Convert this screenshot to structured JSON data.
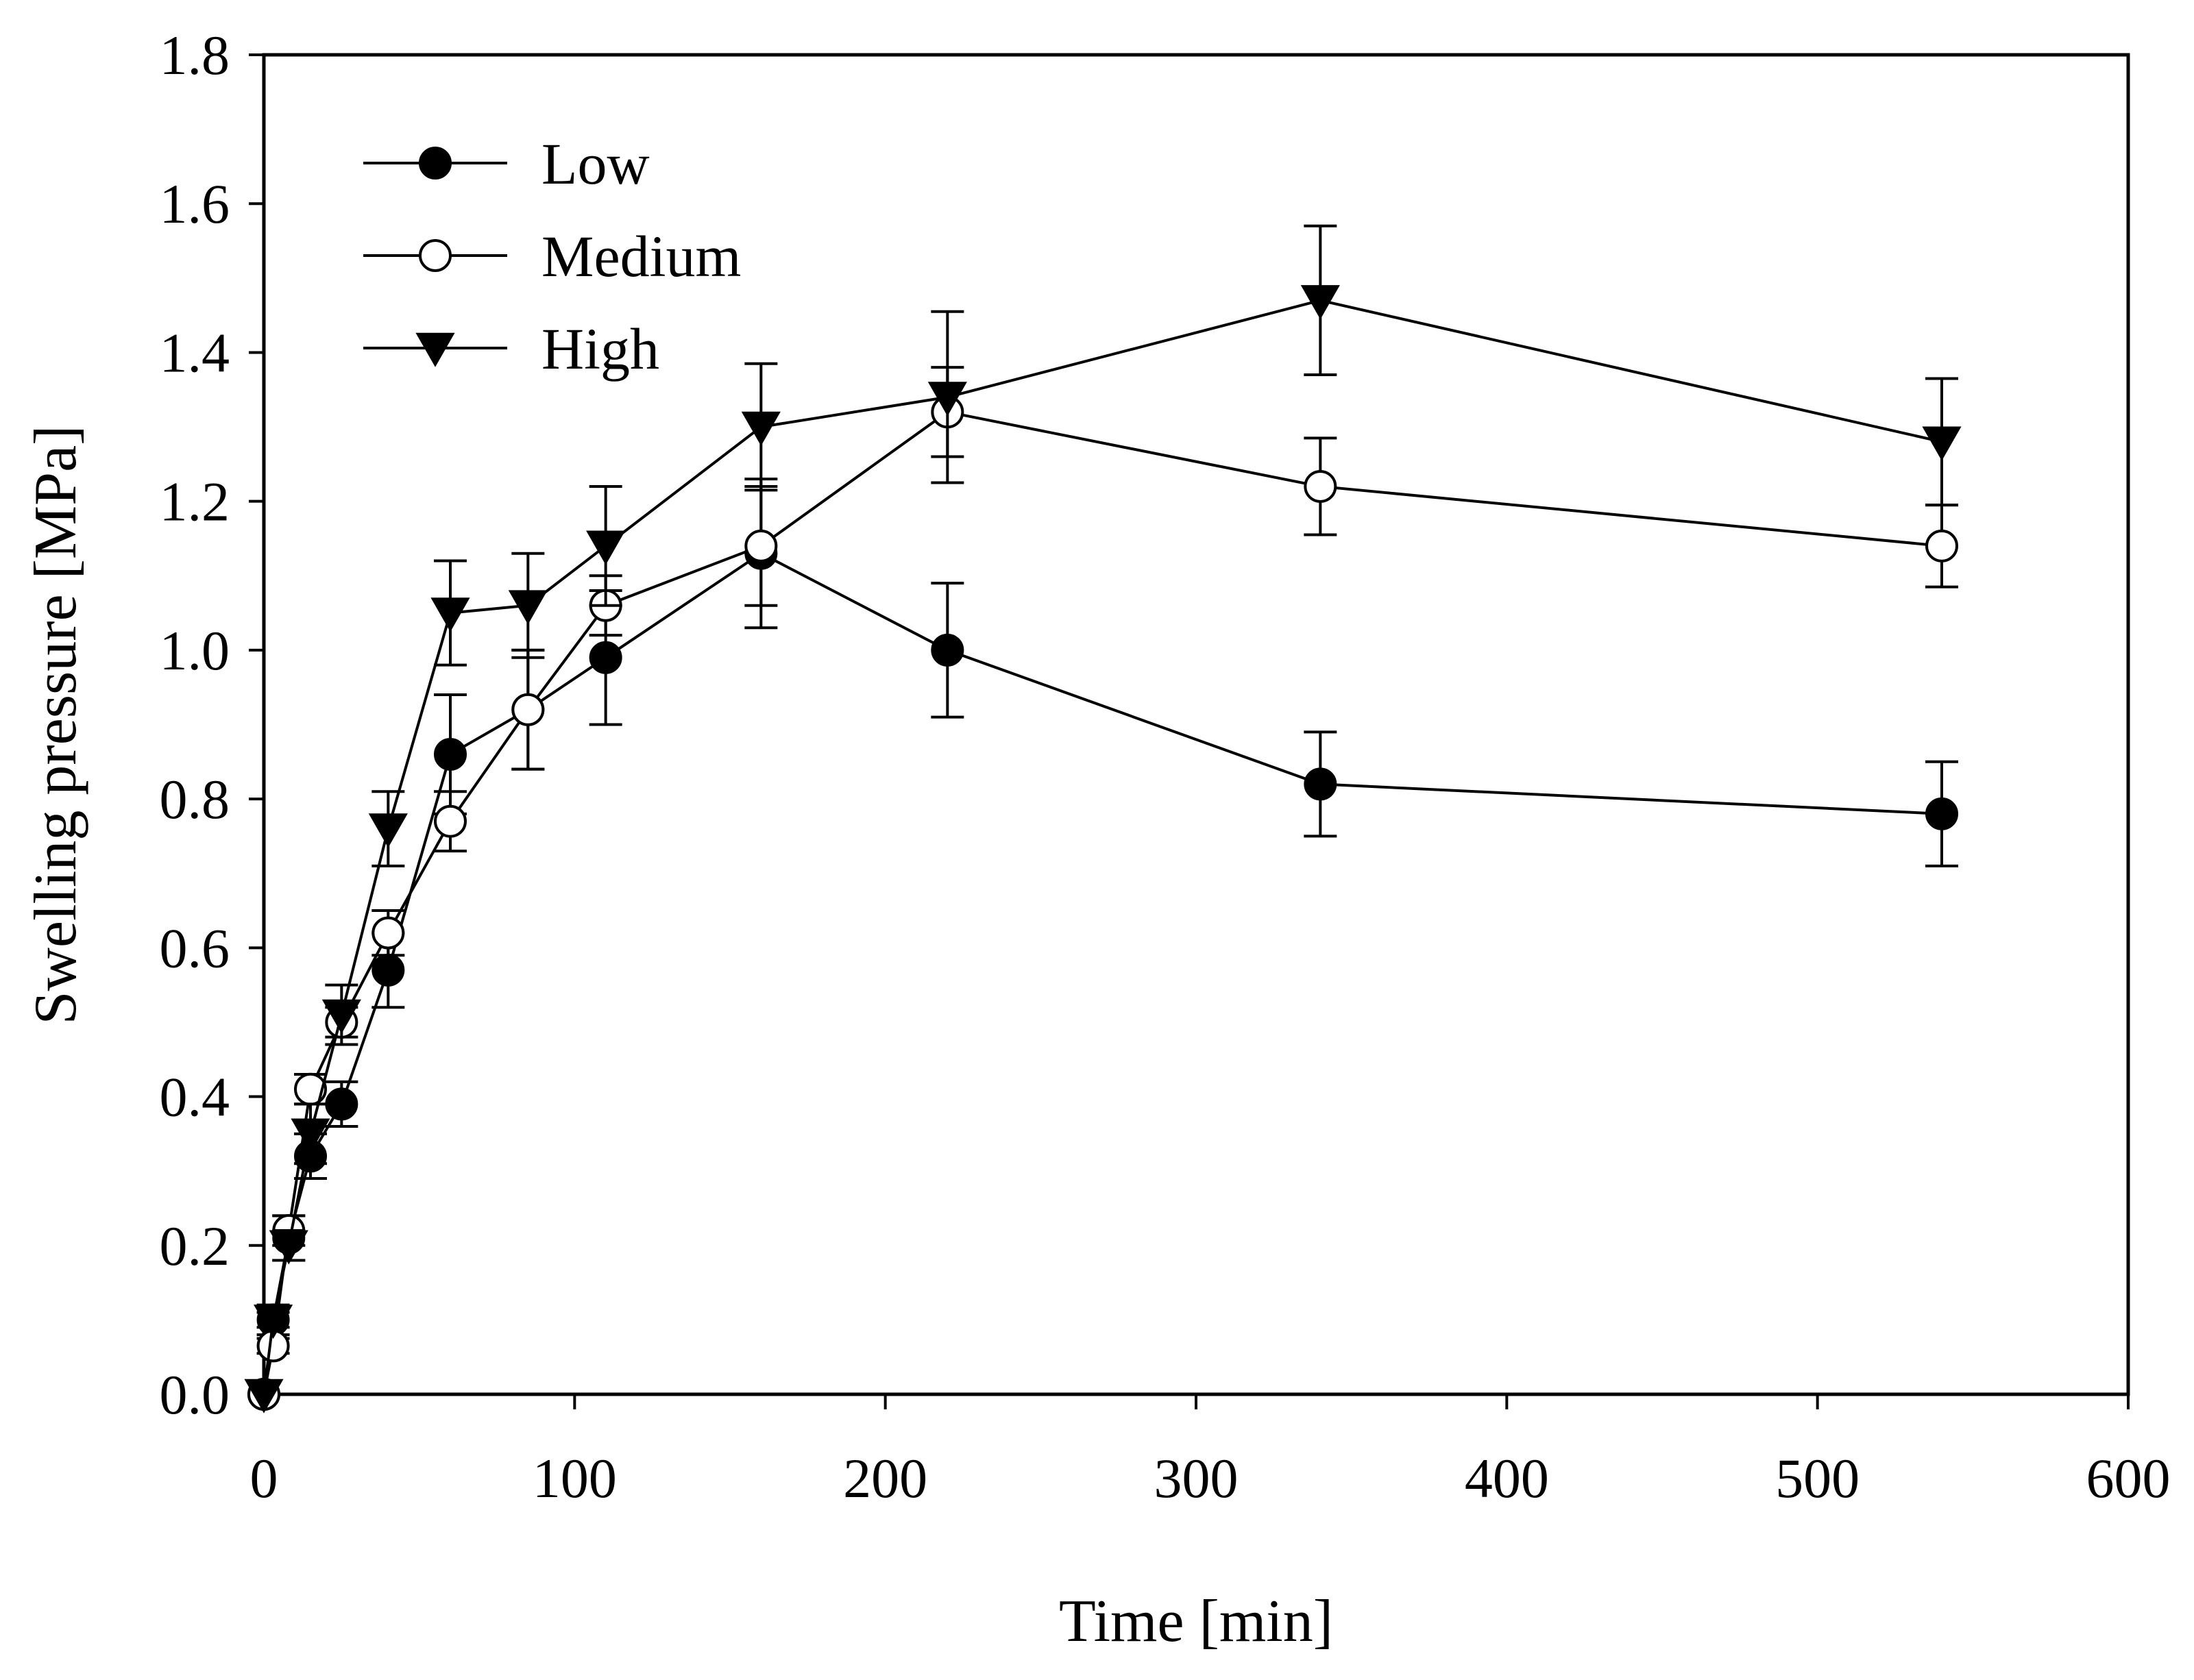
{
  "chart_data": {
    "type": "line",
    "title": "",
    "xlabel": "Time [min]",
    "ylabel": "Swelling pressure [MPa]",
    "xlim": [
      0,
      600
    ],
    "ylim": [
      0.0,
      1.8
    ],
    "x_ticks": [
      "0",
      "100",
      "200",
      "300",
      "400",
      "500",
      "600"
    ],
    "y_ticks": [
      "0.0",
      "0.2",
      "0.4",
      "0.6",
      "0.8",
      "1.0",
      "1.2",
      "1.4",
      "1.6",
      "1.8"
    ],
    "grid": false,
    "legend_position": "top-left",
    "series": [
      {
        "name": "Low",
        "marker": "filled-circle",
        "color": "#000000",
        "x": [
          0,
          3,
          8,
          15,
          25,
          40,
          60,
          85,
          110,
          160,
          220,
          340,
          540
        ],
        "y": [
          0.0,
          0.1,
          0.21,
          0.32,
          0.39,
          0.57,
          0.86,
          0.92,
          0.99,
          1.13,
          1.0,
          0.82,
          0.78
        ],
        "err": [
          0.0,
          0.02,
          0.03,
          0.03,
          0.03,
          0.05,
          0.08,
          0.08,
          0.09,
          0.1,
          0.09,
          0.07,
          0.07
        ]
      },
      {
        "name": "Medium",
        "marker": "open-circle",
        "color": "#000000",
        "x": [
          0,
          3,
          8,
          15,
          25,
          40,
          60,
          85,
          110,
          160,
          220,
          340,
          540
        ],
        "y": [
          0.0,
          0.065,
          0.22,
          0.41,
          0.5,
          0.62,
          0.77,
          0.92,
          1.06,
          1.14,
          1.32,
          1.22,
          1.14
        ],
        "err": [
          0.0,
          0.01,
          0.02,
          0.02,
          0.02,
          0.03,
          0.04,
          0.08,
          0.04,
          0.08,
          0.06,
          0.065,
          0.055
        ]
      },
      {
        "name": "High",
        "marker": "filled-triangle-down",
        "color": "#000000",
        "x": [
          0,
          3,
          8,
          15,
          25,
          40,
          60,
          85,
          110,
          160,
          220,
          340,
          540
        ],
        "y": [
          0.0,
          0.1,
          0.2,
          0.35,
          0.51,
          0.76,
          1.05,
          1.06,
          1.14,
          1.3,
          1.34,
          1.47,
          1.28
        ],
        "err": [
          0.0,
          0.01,
          0.02,
          0.04,
          0.04,
          0.05,
          0.07,
          0.07,
          0.08,
          0.085,
          0.115,
          0.1,
          0.085
        ]
      }
    ]
  }
}
